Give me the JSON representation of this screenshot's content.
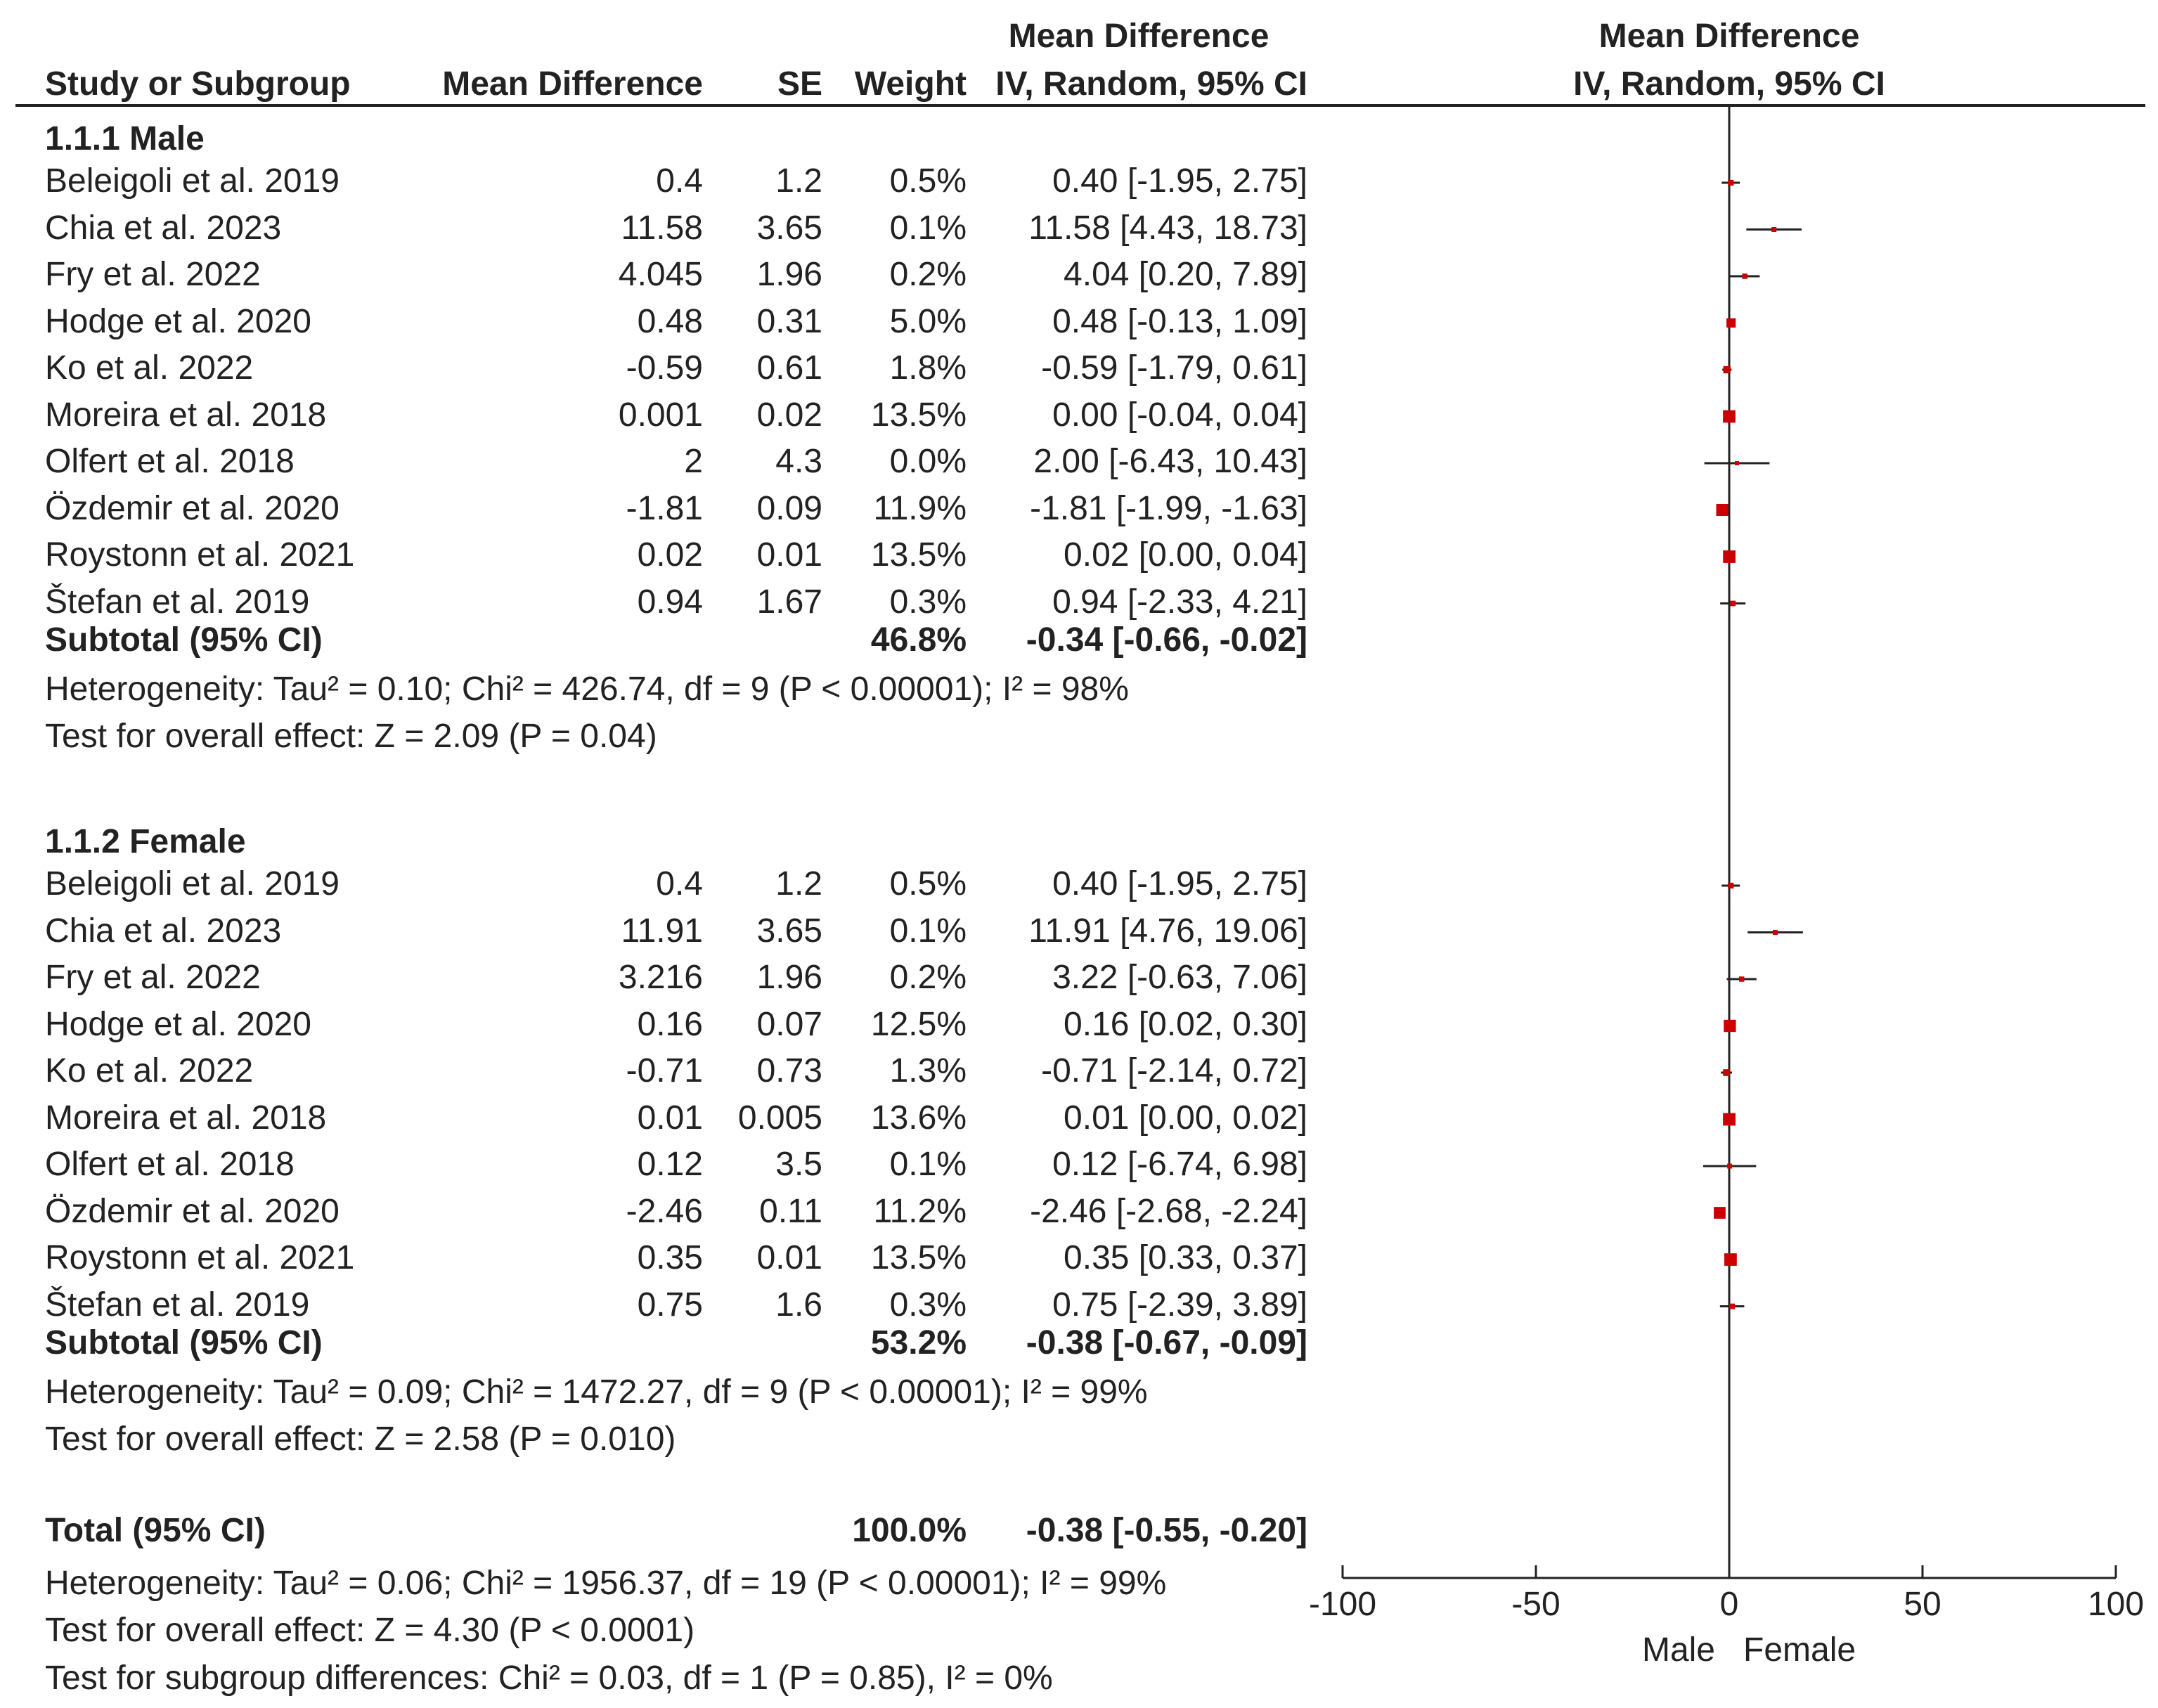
{
  "headers": {
    "study": "Study or Subgroup",
    "md": "Mean Difference",
    "se": "SE",
    "weight": "Weight",
    "ci_top": "Mean Difference",
    "ci_bottom": "IV, Random, 95% CI",
    "plot_top": "Mean Difference",
    "plot_bottom": "IV, Random, 95% CI"
  },
  "subgroups": [
    {
      "title": "1.1.1 Male",
      "studies": [
        {
          "name": "Beleigoli et al. 2019",
          "md": "0.4",
          "se": "1.2",
          "weight": "0.5%",
          "ci": "0.40 [-1.95, 2.75]"
        },
        {
          "name": "Chia et al. 2023",
          "md": "11.58",
          "se": "3.65",
          "weight": "0.1%",
          "ci": "11.58 [4.43, 18.73]"
        },
        {
          "name": "Fry et al. 2022",
          "md": "4.045",
          "se": "1.96",
          "weight": "0.2%",
          "ci": "4.04 [0.20, 7.89]"
        },
        {
          "name": "Hodge et al. 2020",
          "md": "0.48",
          "se": "0.31",
          "weight": "5.0%",
          "ci": "0.48 [-0.13, 1.09]"
        },
        {
          "name": "Ko et al. 2022",
          "md": "-0.59",
          "se": "0.61",
          "weight": "1.8%",
          "ci": "-0.59 [-1.79, 0.61]"
        },
        {
          "name": "Moreira et al. 2018",
          "md": "0.001",
          "se": "0.02",
          "weight": "13.5%",
          "ci": "0.00 [-0.04, 0.04]"
        },
        {
          "name": "Olfert et al. 2018",
          "md": "2",
          "se": "4.3",
          "weight": "0.0%",
          "ci": "2.00 [-6.43, 10.43]"
        },
        {
          "name": "Özdemir et al. 2020",
          "md": "-1.81",
          "se": "0.09",
          "weight": "11.9%",
          "ci": "-1.81 [-1.99, -1.63]"
        },
        {
          "name": "Roystonn et al. 2021",
          "md": "0.02",
          "se": "0.01",
          "weight": "13.5%",
          "ci": "0.02 [0.00, 0.04]"
        },
        {
          "name": "Štefan et al. 2019",
          "md": "0.94",
          "se": "1.67",
          "weight": "0.3%",
          "ci": "0.94 [-2.33, 4.21]"
        }
      ],
      "subtotal": {
        "label": "Subtotal (95% CI)",
        "weight": "46.8%",
        "ci": "-0.34 [-0.66, -0.02]"
      },
      "heterogeneity": "Heterogeneity: Tau² = 0.10; Chi² = 426.74, df = 9 (P < 0.00001); I² = 98%",
      "overall": "Test for overall effect: Z = 2.09 (P = 0.04)"
    },
    {
      "title": "1.1.2 Female",
      "studies": [
        {
          "name": "Beleigoli et al. 2019",
          "md": "0.4",
          "se": "1.2",
          "weight": "0.5%",
          "ci": "0.40 [-1.95, 2.75]"
        },
        {
          "name": "Chia et al. 2023",
          "md": "11.91",
          "se": "3.65",
          "weight": "0.1%",
          "ci": "11.91 [4.76, 19.06]"
        },
        {
          "name": "Fry et al. 2022",
          "md": "3.216",
          "se": "1.96",
          "weight": "0.2%",
          "ci": "3.22 [-0.63, 7.06]"
        },
        {
          "name": "Hodge et al. 2020",
          "md": "0.16",
          "se": "0.07",
          "weight": "12.5%",
          "ci": "0.16 [0.02, 0.30]"
        },
        {
          "name": "Ko et al. 2022",
          "md": "-0.71",
          "se": "0.73",
          "weight": "1.3%",
          "ci": "-0.71 [-2.14, 0.72]"
        },
        {
          "name": "Moreira et al. 2018",
          "md": "0.01",
          "se": "0.005",
          "weight": "13.6%",
          "ci": "0.01 [0.00, 0.02]"
        },
        {
          "name": "Olfert et al. 2018",
          "md": "0.12",
          "se": "3.5",
          "weight": "0.1%",
          "ci": "0.12 [-6.74, 6.98]"
        },
        {
          "name": "Özdemir et al. 2020",
          "md": "-2.46",
          "se": "0.11",
          "weight": "11.2%",
          "ci": "-2.46 [-2.68, -2.24]"
        },
        {
          "name": "Roystonn et al. 2021",
          "md": "0.35",
          "se": "0.01",
          "weight": "13.5%",
          "ci": "0.35 [0.33, 0.37]"
        },
        {
          "name": "Štefan et al. 2019",
          "md": "0.75",
          "se": "1.6",
          "weight": "0.3%",
          "ci": "0.75 [-2.39, 3.89]"
        }
      ],
      "subtotal": {
        "label": "Subtotal (95% CI)",
        "weight": "53.2%",
        "ci": "-0.38 [-0.67, -0.09]"
      },
      "heterogeneity": "Heterogeneity: Tau² = 0.09; Chi² = 1472.27, df = 9 (P < 0.00001); I² = 99%",
      "overall": "Test for overall effect: Z = 2.58 (P = 0.010)"
    }
  ],
  "total": {
    "label": "Total (95% CI)",
    "weight": "100.0%",
    "ci": "-0.38 [-0.55, -0.20]",
    "heterogeneity": "Heterogeneity: Tau² = 0.06; Chi² = 1956.37, df = 19 (P < 0.00001); I² = 99%",
    "overall": "Test for overall effect: Z = 4.30 (P < 0.0001)",
    "subgroup": "Test for subgroup differences: Chi² = 0.03, df = 1 (P = 0.85), I² = 0%"
  },
  "axis": {
    "ticks": [
      -100,
      -50,
      0,
      50,
      100
    ],
    "tick_labels": [
      "-100",
      "-50",
      "0",
      "50",
      "100"
    ],
    "left_label": "Male",
    "right_label": "Female"
  },
  "colors": {
    "marker": "#cc0000",
    "line": "#222222"
  },
  "chart_data": {
    "type": "forest",
    "title": "Mean Difference IV, Random, 95% CI",
    "xlim": [
      -100,
      100
    ],
    "xlabel_left": "Male",
    "xlabel_right": "Female",
    "series": [
      {
        "name": "1.1.1 Male",
        "points": [
          {
            "study": "Beleigoli et al. 2019",
            "est": 0.4,
            "lo": -1.95,
            "hi": 2.75,
            "weight": 0.5
          },
          {
            "study": "Chia et al. 2023",
            "est": 11.58,
            "lo": 4.43,
            "hi": 18.73,
            "weight": 0.1
          },
          {
            "study": "Fry et al. 2022",
            "est": 4.04,
            "lo": 0.2,
            "hi": 7.89,
            "weight": 0.2
          },
          {
            "study": "Hodge et al. 2020",
            "est": 0.48,
            "lo": -0.13,
            "hi": 1.09,
            "weight": 5.0
          },
          {
            "study": "Ko et al. 2022",
            "est": -0.59,
            "lo": -1.79,
            "hi": 0.61,
            "weight": 1.8
          },
          {
            "study": "Moreira et al. 2018",
            "est": 0.0,
            "lo": -0.04,
            "hi": 0.04,
            "weight": 13.5
          },
          {
            "study": "Olfert et al. 2018",
            "est": 2.0,
            "lo": -6.43,
            "hi": 10.43,
            "weight": 0.0
          },
          {
            "study": "Özdemir et al. 2020",
            "est": -1.81,
            "lo": -1.99,
            "hi": -1.63,
            "weight": 11.9
          },
          {
            "study": "Roystonn et al. 2021",
            "est": 0.02,
            "lo": 0.0,
            "hi": 0.04,
            "weight": 13.5
          },
          {
            "study": "Štefan et al. 2019",
            "est": 0.94,
            "lo": -2.33,
            "hi": 4.21,
            "weight": 0.3
          }
        ],
        "subtotal": {
          "est": -0.34,
          "lo": -0.66,
          "hi": -0.02,
          "weight": 46.8
        }
      },
      {
        "name": "1.1.2 Female",
        "points": [
          {
            "study": "Beleigoli et al. 2019",
            "est": 0.4,
            "lo": -1.95,
            "hi": 2.75,
            "weight": 0.5
          },
          {
            "study": "Chia et al. 2023",
            "est": 11.91,
            "lo": 4.76,
            "hi": 19.06,
            "weight": 0.1
          },
          {
            "study": "Fry et al. 2022",
            "est": 3.22,
            "lo": -0.63,
            "hi": 7.06,
            "weight": 0.2
          },
          {
            "study": "Hodge et al. 2020",
            "est": 0.16,
            "lo": 0.02,
            "hi": 0.3,
            "weight": 12.5
          },
          {
            "study": "Ko et al. 2022",
            "est": -0.71,
            "lo": -2.14,
            "hi": 0.72,
            "weight": 1.3
          },
          {
            "study": "Moreira et al. 2018",
            "est": 0.01,
            "lo": 0.0,
            "hi": 0.02,
            "weight": 13.6
          },
          {
            "study": "Olfert et al. 2018",
            "est": 0.12,
            "lo": -6.74,
            "hi": 6.98,
            "weight": 0.1
          },
          {
            "study": "Özdemir et al. 2020",
            "est": -2.46,
            "lo": -2.68,
            "hi": -2.24,
            "weight": 11.2
          },
          {
            "study": "Roystonn et al. 2021",
            "est": 0.35,
            "lo": 0.33,
            "hi": 0.37,
            "weight": 13.5
          },
          {
            "study": "Štefan et al. 2019",
            "est": 0.75,
            "lo": -2.39,
            "hi": 3.89,
            "weight": 0.3
          }
        ],
        "subtotal": {
          "est": -0.38,
          "lo": -0.67,
          "hi": -0.09,
          "weight": 53.2
        }
      }
    ],
    "total": {
      "est": -0.38,
      "lo": -0.55,
      "hi": -0.2,
      "weight": 100.0
    }
  }
}
